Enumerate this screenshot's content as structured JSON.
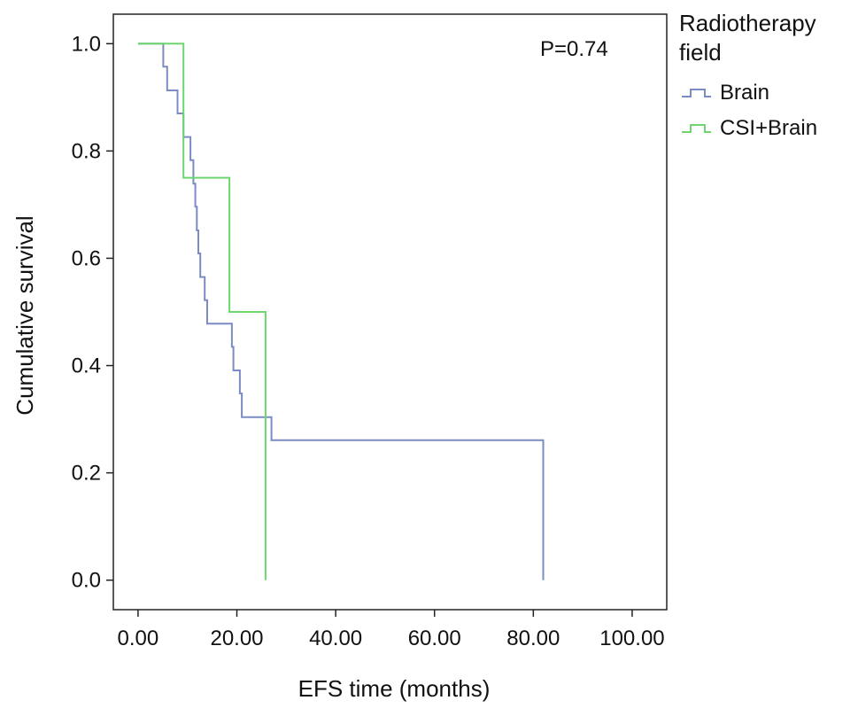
{
  "chart_data": {
    "type": "line",
    "subtype": "kaplan-meier step",
    "xlabel": "EFS time (months)",
    "ylabel": "Cumulative survival",
    "xlim": [
      -5,
      107
    ],
    "ylim": [
      -0.055,
      1.055
    ],
    "xticks": [
      0,
      20,
      40,
      60,
      80,
      100
    ],
    "xtick_labels": [
      "0.00",
      "20.00",
      "40.00",
      "60.00",
      "80.00",
      "100.00"
    ],
    "yticks": [
      0,
      0.2,
      0.4,
      0.6,
      0.8,
      1.0
    ],
    "ytick_labels": [
      "0.0",
      "0.2",
      "0.4",
      "0.6",
      "0.8",
      "1.0"
    ],
    "grid": false,
    "annotation": "P=0.74",
    "legend": {
      "title": "Radiotherapy field",
      "title_lines": [
        "Radiotherapy",
        "field"
      ],
      "placement": "outside-top-right"
    },
    "series": [
      {
        "name": "Brain",
        "color": "#7b8cc4",
        "points": [
          [
            0,
            1.0
          ],
          [
            5.1,
            0.957
          ],
          [
            5.9,
            0.913
          ],
          [
            8.0,
            0.87
          ],
          [
            9.2,
            0.826
          ],
          [
            10.6,
            0.783
          ],
          [
            11.2,
            0.739
          ],
          [
            11.6,
            0.696
          ],
          [
            11.9,
            0.652
          ],
          [
            12.2,
            0.609
          ],
          [
            12.6,
            0.565
          ],
          [
            13.5,
            0.522
          ],
          [
            14.0,
            0.478
          ],
          [
            19.0,
            0.435
          ],
          [
            19.3,
            0.391
          ],
          [
            20.6,
            0.348
          ],
          [
            21.0,
            0.304
          ],
          [
            27.0,
            0.261
          ],
          [
            82.0,
            0.0
          ]
        ]
      },
      {
        "name": "CSI+Brain",
        "color": "#6dd66d",
        "points": [
          [
            0,
            1.0
          ],
          [
            9.2,
            0.75
          ],
          [
            18.5,
            0.5
          ],
          [
            25.8,
            0.0
          ]
        ]
      }
    ]
  }
}
